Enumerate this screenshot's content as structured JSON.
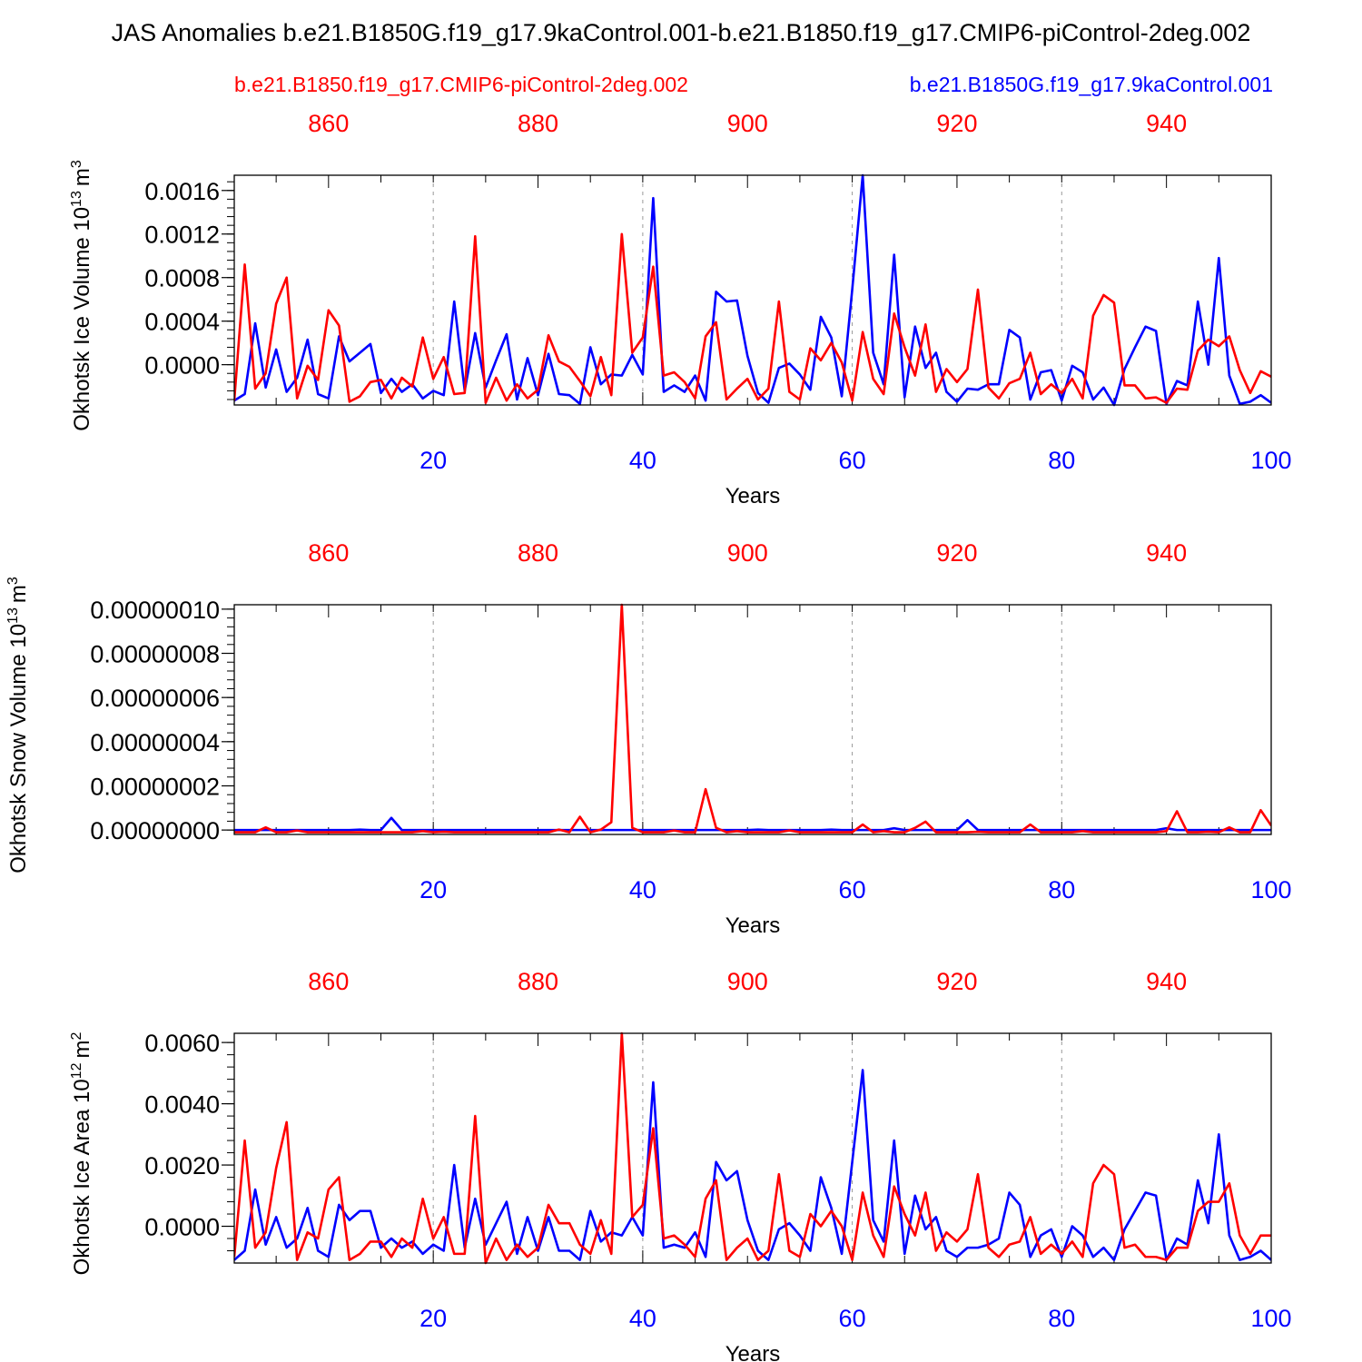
{
  "title": "JAS Anomalies b.e21.B1850G.f19_g17.9kaControl.001-b.e21.B1850.f19_g17.CMIP6-piControl-2deg.002",
  "legend": {
    "red_label": "b.e21.B1850.f19_g17.CMIP6-piControl-2deg.002",
    "blue_label": "b.e21.B1850G.f19_g17.9kaControl.001"
  },
  "colors": {
    "red": "#ff0000",
    "blue": "#0000ff",
    "axis": "#000000",
    "grid": "#999999"
  },
  "chart_data": [
    {
      "type": "line",
      "title": "",
      "ylabel": "Okhotsk Ice Volume 10",
      "ylabel_exp": "13",
      "ylabel_unit": "m",
      "ylabel_unit_exp": "3",
      "xlabel": "Years",
      "xlim": [
        1,
        100
      ],
      "x2lim": [
        851,
        950
      ],
      "ylim": [
        -0.00037,
        0.00174
      ],
      "yticks": [
        0.0,
        0.0004,
        0.0008,
        0.0012,
        0.0016
      ],
      "ytick_labels": [
        "0.0000",
        "0.0004",
        "0.0008",
        "0.0012",
        "0.0016"
      ],
      "xticks": [
        20,
        40,
        60,
        80,
        100
      ],
      "xtick_labels": [
        "20",
        "40",
        "60",
        "80",
        "100"
      ],
      "x2ticks": [
        860,
        880,
        900,
        920,
        940
      ],
      "x2tick_labels": [
        "860",
        "880",
        "900",
        "920",
        "940"
      ],
      "grid_x": [
        20,
        40,
        60,
        80
      ],
      "series": [
        {
          "name": "b.e21.B1850G.f19_g17.9kaControl.001",
          "color": "blue",
          "x_axis": "bottom",
          "values": [
            -0.00033,
            -0.00027,
            0.00038,
            -0.00021,
            0.00014,
            -0.00025,
            -0.00012,
            0.00023,
            -0.00027,
            -0.00031,
            0.00026,
            3e-05,
            0.00011,
            0.00019,
            -0.00026,
            -0.00013,
            -0.00025,
            -0.00018,
            -0.00031,
            -0.00024,
            -0.00028,
            0.00058,
            -0.00024,
            0.00029,
            -0.00021,
            4e-05,
            0.00028,
            -0.00032,
            6e-05,
            -0.00028,
            0.0001,
            -0.00027,
            -0.00028,
            -0.00036,
            0.00016,
            -0.00018,
            -9e-05,
            -0.0001,
            9e-05,
            -9e-05,
            0.00153,
            -0.00025,
            -0.00019,
            -0.00025,
            -0.0001,
            -0.00033,
            0.00067,
            0.00058,
            0.00059,
            8e-05,
            -0.00026,
            -0.00035,
            -3e-05,
            1e-05,
            -9e-05,
            -0.00023,
            0.00044,
            0.00025,
            -0.00029,
            0.00069,
            0.00174,
            0.00011,
            -0.00018,
            0.00101,
            -0.0003,
            0.00035,
            -3e-05,
            0.00011,
            -0.00025,
            -0.00034,
            -0.00022,
            -0.00023,
            -0.00018,
            -0.00018,
            0.00032,
            0.00025,
            -0.00032,
            -7e-05,
            -5e-05,
            -0.00033,
            -1e-05,
            -7e-05,
            -0.00032,
            -0.00021,
            -0.00037,
            -4e-05,
            0.00016,
            0.00035,
            0.00031,
            -0.00036,
            -0.00015,
            -0.00019,
            0.00058,
            0.0,
            0.00098,
            -0.0001,
            -0.00036,
            -0.00034,
            -0.00028,
            -0.00035
          ]
        },
        {
          "name": "b.e21.B1850.f19_g17.CMIP6-piControl-2deg.002",
          "color": "red",
          "x_axis": "top",
          "values": [
            -0.00033,
            0.00092,
            -0.00022,
            -8e-05,
            0.00056,
            0.0008,
            -0.00031,
            -1e-05,
            -0.00014,
            0.0005,
            0.00036,
            -0.00034,
            -0.00029,
            -0.00016,
            -0.00014,
            -0.00031,
            -0.00012,
            -0.0002,
            0.00025,
            -0.00013,
            7e-05,
            -0.00027,
            -0.00026,
            0.00118,
            -0.00035,
            -0.00012,
            -0.00033,
            -0.00018,
            -0.00031,
            -0.00023,
            0.00027,
            3e-05,
            -2e-05,
            -0.00015,
            -0.00029,
            7e-05,
            -0.00028,
            0.0012,
            0.00011,
            0.00025,
            0.0009,
            -0.0001,
            -7e-05,
            -0.00016,
            -0.00031,
            0.00026,
            0.00039,
            -0.00032,
            -0.00022,
            -0.00013,
            -0.00032,
            -0.00022,
            0.00058,
            -0.00025,
            -0.00032,
            0.00015,
            4e-05,
            0.0002,
            2e-05,
            -0.00033,
            0.0003,
            -0.00013,
            -0.00027,
            0.00047,
            0.00016,
            -0.0001,
            0.00037,
            -0.00025,
            -4e-05,
            -0.00016,
            -4e-05,
            0.00069,
            -0.00021,
            -0.00031,
            -0.00017,
            -0.00013,
            0.00011,
            -0.00027,
            -0.00018,
            -0.00026,
            -0.00013,
            -0.00031,
            0.00045,
            0.00064,
            0.00057,
            -0.00019,
            -0.00019,
            -0.00031,
            -0.0003,
            -0.00035,
            -0.00022,
            -0.00023,
            0.00013,
            0.00023,
            0.00017,
            0.00026,
            -5e-05,
            -0.00026,
            -6e-05,
            -0.00011
          ]
        }
      ]
    },
    {
      "type": "line",
      "title": "",
      "ylabel": "Okhotsk Snow Volume 10",
      "ylabel_exp": "13",
      "ylabel_unit": "m",
      "ylabel_unit_exp": "3",
      "xlabel": "Years",
      "xlim": [
        1,
        100
      ],
      "x2lim": [
        851,
        950
      ],
      "ylim": [
        -2e-09,
        1.02e-07
      ],
      "yticks": [
        0.0,
        2e-08,
        4e-08,
        6e-08,
        8e-08,
        1e-07
      ],
      "ytick_labels": [
        "0.00000000",
        "0.00000002",
        "0.00000004",
        "0.00000006",
        "0.00000008",
        "0.00000010"
      ],
      "xticks": [
        20,
        40,
        60,
        80,
        100
      ],
      "xtick_labels": [
        "20",
        "40",
        "60",
        "80",
        "100"
      ],
      "x2ticks": [
        860,
        880,
        900,
        920,
        940
      ],
      "x2tick_labels": [
        "860",
        "880",
        "900",
        "920",
        "940"
      ],
      "grid_x": [
        20,
        40,
        60,
        80
      ],
      "series": [
        {
          "name": "b.e21.B1850G.f19_g17.9kaControl.001",
          "color": "blue",
          "x_axis": "bottom",
          "values": [
            0,
            0,
            0,
            0,
            0,
            0,
            0,
            0,
            0,
            0,
            0,
            0,
            2e-10,
            0,
            0,
            5.5e-09,
            0,
            0,
            0,
            0,
            0,
            0,
            0,
            0,
            0,
            0,
            0,
            0,
            0,
            0,
            0,
            0,
            0,
            0,
            0,
            0,
            0,
            0,
            0,
            0,
            0,
            0,
            0,
            0,
            0,
            0,
            0,
            0,
            0,
            0,
            2e-10,
            0,
            0,
            0,
            0,
            0,
            0,
            2e-10,
            0,
            0,
            0,
            0,
            0,
            8e-10,
            0,
            0,
            0,
            0,
            0,
            0,
            4.5e-09,
            0,
            0,
            0,
            0,
            0,
            0,
            0,
            0,
            0,
            0,
            0,
            0,
            0,
            0,
            0,
            0,
            0,
            0,
            8e-10,
            0,
            0,
            0,
            0,
            0,
            0,
            0,
            0,
            0,
            0
          ]
        },
        {
          "name": "b.e21.B1850.f19_g17.CMIP6-piControl-2deg.002",
          "color": "red",
          "x_axis": "top",
          "values": [
            -1e-09,
            -1e-09,
            -1e-09,
            1.2e-09,
            -1e-09,
            -1e-09,
            -2e-10,
            -1e-09,
            -1e-09,
            -1e-09,
            -1e-09,
            -1e-09,
            -1e-09,
            -1e-09,
            -1e-09,
            -1e-09,
            -1e-09,
            -1e-09,
            -5e-10,
            -1e-09,
            -8e-10,
            -1e-09,
            -1e-09,
            -1e-09,
            -1e-09,
            -1e-09,
            -1e-09,
            -1e-09,
            -1e-09,
            -1e-09,
            -1e-09,
            2e-10,
            -1e-09,
            6e-09,
            -1e-09,
            2e-10,
            3.5e-09,
            1.02e-07,
            1e-09,
            -1e-09,
            -1e-09,
            -1e-09,
            -2e-10,
            -1e-09,
            -1e-09,
            1.85e-08,
            1e-09,
            -1e-09,
            -5e-10,
            -1e-09,
            -1e-09,
            -1e-09,
            -1e-09,
            -2e-10,
            -1e-09,
            -1e-09,
            -1e-09,
            -1e-09,
            -1e-09,
            -1e-09,
            2.5e-09,
            -1e-09,
            -5e-10,
            -1e-09,
            -1e-09,
            1e-09,
            3.8e-09,
            -1e-09,
            -1e-09,
            -1e-09,
            -1e-09,
            -8e-10,
            -1e-09,
            -1e-09,
            -1e-09,
            -1e-09,
            2.5e-09,
            -1e-09,
            -1e-09,
            -1e-09,
            -1e-09,
            -5e-10,
            -1e-09,
            -1e-09,
            -1e-09,
            -1e-09,
            -1e-09,
            -1e-09,
            -1e-09,
            -5e-10,
            8.5e-09,
            -1e-09,
            -1e-09,
            -8e-10,
            -1e-09,
            1.2e-09,
            -1e-09,
            -1e-09,
            9e-09,
            2e-09
          ]
        }
      ]
    },
    {
      "type": "line",
      "title": "",
      "ylabel": "Okhotsk Ice Area 10",
      "ylabel_exp": "12",
      "ylabel_unit": "m",
      "ylabel_unit_exp": "2",
      "xlabel": "Years",
      "xlim": [
        1,
        100
      ],
      "x2lim": [
        851,
        950
      ],
      "ylim": [
        -0.0012,
        0.0063
      ],
      "yticks": [
        0.0,
        0.002,
        0.004,
        0.006
      ],
      "ytick_labels": [
        "0.0000",
        "0.0020",
        "0.0040",
        "0.0060"
      ],
      "xticks": [
        20,
        40,
        60,
        80,
        100
      ],
      "xtick_labels": [
        "20",
        "40",
        "60",
        "80",
        "100"
      ],
      "x2ticks": [
        860,
        880,
        900,
        920,
        940
      ],
      "x2tick_labels": [
        "860",
        "880",
        "900",
        "920",
        "940"
      ],
      "grid_x": [
        20,
        40,
        60,
        80
      ],
      "series": [
        {
          "name": "b.e21.B1850G.f19_g17.9kaControl.001",
          "color": "blue",
          "x_axis": "bottom",
          "values": [
            -0.0011,
            -0.0008,
            0.0012,
            -0.0006,
            0.0003,
            -0.0007,
            -0.0004,
            0.0006,
            -0.0008,
            -0.001,
            0.0007,
            0.0002,
            0.0005,
            0.0005,
            -0.0007,
            -0.0004,
            -0.0007,
            -0.0005,
            -0.0009,
            -0.0006,
            -0.0008,
            0.002,
            -0.0007,
            0.0009,
            -0.0006,
            0.0001,
            0.0008,
            -0.0009,
            0.0003,
            -0.0008,
            0.0003,
            -0.0008,
            -0.0008,
            -0.0011,
            0.0005,
            -0.0005,
            -0.0002,
            -0.0003,
            0.0003,
            -0.0003,
            0.0047,
            -0.0007,
            -0.0006,
            -0.0007,
            -0.0002,
            -0.001,
            0.0021,
            0.0015,
            0.0018,
            0.0002,
            -0.0008,
            -0.0011,
            -0.0001,
            0.0001,
            -0.0003,
            -0.0008,
            0.0016,
            0.0006,
            -0.0009,
            0.0021,
            0.0051,
            0.0002,
            -0.0005,
            0.0028,
            -0.0009,
            0.001,
            -0.0001,
            0.0003,
            -0.0008,
            -0.001,
            -0.0007,
            -0.0007,
            -0.0006,
            -0.0004,
            0.0011,
            0.0007,
            -0.001,
            -0.0003,
            -0.0001,
            -0.001,
            0.0,
            -0.0003,
            -0.001,
            -0.0007,
            -0.0011,
            -0.0001,
            0.0005,
            0.0011,
            0.001,
            -0.0011,
            -0.0004,
            -0.0006,
            0.0015,
            0.0001,
            0.003,
            -0.0003,
            -0.0011,
            -0.001,
            -0.0008,
            -0.0011
          ]
        },
        {
          "name": "b.e21.B1850.f19_g17.CMIP6-piControl-2deg.002",
          "color": "red",
          "x_axis": "top",
          "values": [
            -0.001,
            0.0028,
            -0.0007,
            -0.0002,
            0.0019,
            0.0034,
            -0.0011,
            -0.0002,
            -0.0004,
            0.0012,
            0.0016,
            -0.0011,
            -0.0009,
            -0.0005,
            -0.0005,
            -0.001,
            -0.0004,
            -0.0007,
            0.0009,
            -0.0004,
            0.0003,
            -0.0009,
            -0.0009,
            0.0036,
            -0.0012,
            -0.0004,
            -0.0011,
            -0.0006,
            -0.001,
            -0.0007,
            0.0007,
            0.0001,
            0.0001,
            -0.0006,
            -0.0009,
            0.0002,
            -0.0009,
            0.0063,
            0.0003,
            0.0007,
            0.0032,
            -0.0004,
            -0.0003,
            -0.0006,
            -0.001,
            0.0009,
            0.0015,
            -0.0011,
            -0.0007,
            -0.0004,
            -0.0011,
            -0.0008,
            0.0017,
            -0.0008,
            -0.001,
            0.0004,
            0.0,
            0.0005,
            0.0,
            -0.0011,
            0.0011,
            -0.0003,
            -0.001,
            0.0013,
            0.0004,
            -0.0003,
            0.0011,
            -0.0008,
            -0.0002,
            -0.0005,
            -0.0001,
            0.0017,
            -0.0007,
            -0.001,
            -0.0006,
            -0.0005,
            0.0003,
            -0.0009,
            -0.0006,
            -0.0009,
            -0.0005,
            -0.001,
            0.0014,
            0.002,
            0.0017,
            -0.0007,
            -0.0006,
            -0.001,
            -0.001,
            -0.0011,
            -0.0007,
            -0.0007,
            0.0005,
            0.0008,
            0.0008,
            0.0014,
            -0.0003,
            -0.0009,
            -0.0003,
            -0.0003
          ]
        }
      ]
    }
  ]
}
